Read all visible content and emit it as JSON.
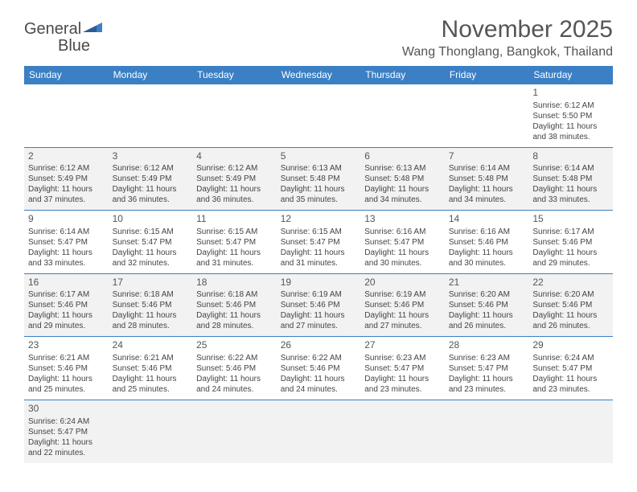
{
  "logo": {
    "part1": "General",
    "part2": "Blue"
  },
  "title": "November 2025",
  "location": "Wang Thonglang, Bangkok, Thailand",
  "colors": {
    "header_bg": "#3b7fc4",
    "header_text": "#ffffff",
    "border": "#3b7fc4",
    "shaded_bg": "#f2f2f2",
    "text": "#444444",
    "title_text": "#555555"
  },
  "weekdays": [
    "Sunday",
    "Monday",
    "Tuesday",
    "Wednesday",
    "Thursday",
    "Friday",
    "Saturday"
  ],
  "days": {
    "1": {
      "sunrise": "6:12 AM",
      "sunset": "5:50 PM",
      "daylight": "11 hours and 38 minutes."
    },
    "2": {
      "sunrise": "6:12 AM",
      "sunset": "5:49 PM",
      "daylight": "11 hours and 37 minutes."
    },
    "3": {
      "sunrise": "6:12 AM",
      "sunset": "5:49 PM",
      "daylight": "11 hours and 36 minutes."
    },
    "4": {
      "sunrise": "6:12 AM",
      "sunset": "5:49 PM",
      "daylight": "11 hours and 36 minutes."
    },
    "5": {
      "sunrise": "6:13 AM",
      "sunset": "5:48 PM",
      "daylight": "11 hours and 35 minutes."
    },
    "6": {
      "sunrise": "6:13 AM",
      "sunset": "5:48 PM",
      "daylight": "11 hours and 34 minutes."
    },
    "7": {
      "sunrise": "6:14 AM",
      "sunset": "5:48 PM",
      "daylight": "11 hours and 34 minutes."
    },
    "8": {
      "sunrise": "6:14 AM",
      "sunset": "5:48 PM",
      "daylight": "11 hours and 33 minutes."
    },
    "9": {
      "sunrise": "6:14 AM",
      "sunset": "5:47 PM",
      "daylight": "11 hours and 33 minutes."
    },
    "10": {
      "sunrise": "6:15 AM",
      "sunset": "5:47 PM",
      "daylight": "11 hours and 32 minutes."
    },
    "11": {
      "sunrise": "6:15 AM",
      "sunset": "5:47 PM",
      "daylight": "11 hours and 31 minutes."
    },
    "12": {
      "sunrise": "6:15 AM",
      "sunset": "5:47 PM",
      "daylight": "11 hours and 31 minutes."
    },
    "13": {
      "sunrise": "6:16 AM",
      "sunset": "5:47 PM",
      "daylight": "11 hours and 30 minutes."
    },
    "14": {
      "sunrise": "6:16 AM",
      "sunset": "5:46 PM",
      "daylight": "11 hours and 30 minutes."
    },
    "15": {
      "sunrise": "6:17 AM",
      "sunset": "5:46 PM",
      "daylight": "11 hours and 29 minutes."
    },
    "16": {
      "sunrise": "6:17 AM",
      "sunset": "5:46 PM",
      "daylight": "11 hours and 29 minutes."
    },
    "17": {
      "sunrise": "6:18 AM",
      "sunset": "5:46 PM",
      "daylight": "11 hours and 28 minutes."
    },
    "18": {
      "sunrise": "6:18 AM",
      "sunset": "5:46 PM",
      "daylight": "11 hours and 28 minutes."
    },
    "19": {
      "sunrise": "6:19 AM",
      "sunset": "5:46 PM",
      "daylight": "11 hours and 27 minutes."
    },
    "20": {
      "sunrise": "6:19 AM",
      "sunset": "5:46 PM",
      "daylight": "11 hours and 27 minutes."
    },
    "21": {
      "sunrise": "6:20 AM",
      "sunset": "5:46 PM",
      "daylight": "11 hours and 26 minutes."
    },
    "22": {
      "sunrise": "6:20 AM",
      "sunset": "5:46 PM",
      "daylight": "11 hours and 26 minutes."
    },
    "23": {
      "sunrise": "6:21 AM",
      "sunset": "5:46 PM",
      "daylight": "11 hours and 25 minutes."
    },
    "24": {
      "sunrise": "6:21 AM",
      "sunset": "5:46 PM",
      "daylight": "11 hours and 25 minutes."
    },
    "25": {
      "sunrise": "6:22 AM",
      "sunset": "5:46 PM",
      "daylight": "11 hours and 24 minutes."
    },
    "26": {
      "sunrise": "6:22 AM",
      "sunset": "5:46 PM",
      "daylight": "11 hours and 24 minutes."
    },
    "27": {
      "sunrise": "6:23 AM",
      "sunset": "5:47 PM",
      "daylight": "11 hours and 23 minutes."
    },
    "28": {
      "sunrise": "6:23 AM",
      "sunset": "5:47 PM",
      "daylight": "11 hours and 23 minutes."
    },
    "29": {
      "sunrise": "6:24 AM",
      "sunset": "5:47 PM",
      "daylight": "11 hours and 23 minutes."
    },
    "30": {
      "sunrise": "6:24 AM",
      "sunset": "5:47 PM",
      "daylight": "11 hours and 22 minutes."
    }
  },
  "labels": {
    "sunrise": "Sunrise: ",
    "sunset": "Sunset: ",
    "daylight": "Daylight: "
  },
  "layout": {
    "first_day_column": 6,
    "num_days": 30,
    "shaded_rows": [
      1,
      3,
      5
    ]
  }
}
